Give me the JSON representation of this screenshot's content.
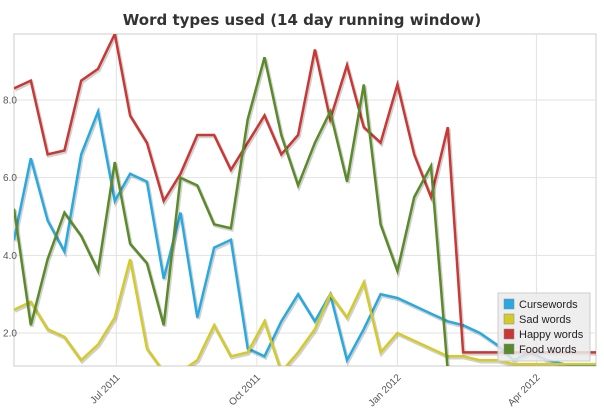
{
  "chart_data": {
    "type": "line",
    "title": "Word types used (14 day running window)",
    "xlabel": "",
    "ylabel": "",
    "x_ticks": [
      {
        "label": "Jul 2011",
        "date": "2011-07-01"
      },
      {
        "label": "Oct 2011",
        "date": "2011-10-01"
      },
      {
        "label": "Jan 2012",
        "date": "2012-01-01"
      },
      {
        "label": "Apr 2012",
        "date": "2012-04-01"
      }
    ],
    "y_ticks": [
      {
        "label": "2.0",
        "value": 2.0
      },
      {
        "label": "4.0",
        "value": 4.0
      },
      {
        "label": "6.0",
        "value": 6.0
      },
      {
        "label": "8.0",
        "value": 8.0
      }
    ],
    "xlim": [
      "2011-04-25",
      "2012-05-10"
    ],
    "ylim": [
      1.15,
      9.7
    ],
    "grid": true,
    "legend_position": "bottom-right",
    "x": [
      "2011-04-25",
      "2011-05-06",
      "2011-05-17",
      "2011-05-28",
      "2011-06-08",
      "2011-06-19",
      "2011-06-30",
      "2011-07-10",
      "2011-07-21",
      "2011-08-01",
      "2011-08-12",
      "2011-08-23",
      "2011-09-03",
      "2011-09-14",
      "2011-09-25",
      "2011-10-06",
      "2011-10-17",
      "2011-10-28",
      "2011-11-08",
      "2011-11-18",
      "2011-11-29",
      "2011-12-10",
      "2011-12-21",
      "2012-01-01",
      "2012-01-12",
      "2012-01-23",
      "2012-02-03",
      "2012-02-13",
      "2012-02-24",
      "2012-03-06",
      "2012-03-17",
      "2012-03-28",
      "2012-04-08",
      "2012-04-19",
      "2012-04-30",
      "2012-05-10"
    ],
    "series": [
      {
        "name": "Cursewords",
        "color": "#2aa9e0",
        "values": [
          4.4,
          6.5,
          4.9,
          4.1,
          6.6,
          7.7,
          5.4,
          6.1,
          5.9,
          3.4,
          5.1,
          2.4,
          4.2,
          4.4,
          1.6,
          1.4,
          2.3,
          3.0,
          2.3,
          3.0,
          1.3,
          2.1,
          3.0,
          2.9,
          2.7,
          2.5,
          2.3,
          2.2,
          2.0,
          1.7,
          1.3,
          1.5,
          1.3,
          1.2,
          1.15,
          1.15
        ]
      },
      {
        "name": "Sad words",
        "color": "#d4cb2a",
        "values": [
          2.6,
          2.8,
          2.1,
          1.9,
          1.3,
          1.7,
          2.4,
          3.9,
          1.6,
          1.0,
          1.0,
          1.3,
          2.2,
          1.4,
          1.5,
          2.3,
          1.0,
          1.5,
          2.1,
          3.0,
          2.4,
          3.3,
          1.5,
          2.0,
          1.8,
          1.6,
          1.4,
          1.4,
          1.3,
          1.3,
          1.2,
          1.2,
          1.2,
          1.2,
          1.2,
          1.2
        ]
      },
      {
        "name": "Happy words",
        "color": "#c93834",
        "values": [
          8.3,
          8.5,
          6.6,
          6.7,
          8.5,
          8.8,
          9.7,
          7.6,
          6.9,
          5.4,
          6.1,
          7.1,
          7.1,
          6.2,
          6.9,
          7.6,
          6.6,
          7.1,
          9.3,
          7.5,
          8.9,
          7.3,
          6.9,
          8.4,
          6.6,
          5.5,
          7.3,
          1.5,
          1.5,
          1.5,
          1.5,
          1.5,
          1.5,
          1.5,
          1.5,
          1.5
        ]
      },
      {
        "name": "Food words",
        "color": "#5b8a2a",
        "values": [
          5.2,
          2.2,
          3.9,
          5.1,
          4.5,
          3.6,
          6.4,
          4.3,
          3.8,
          2.2,
          6.0,
          5.8,
          4.8,
          4.7,
          7.5,
          9.1,
          7.1,
          5.8,
          6.9,
          7.7,
          5.9,
          8.4,
          4.8,
          3.6,
          5.5,
          6.3,
          1.0,
          1.0,
          1.0,
          1.0,
          1.0,
          1.0,
          1.0,
          1.0,
          1.0,
          1.0
        ]
      }
    ]
  }
}
